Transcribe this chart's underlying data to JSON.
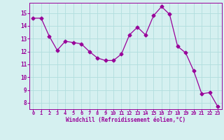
{
  "x": [
    0,
    1,
    2,
    3,
    4,
    5,
    6,
    7,
    8,
    9,
    10,
    11,
    12,
    13,
    14,
    15,
    16,
    17,
    18,
    19,
    20,
    21,
    22,
    23
  ],
  "y": [
    14.6,
    14.6,
    13.2,
    12.1,
    12.8,
    12.7,
    12.6,
    12.0,
    11.5,
    11.3,
    11.3,
    11.8,
    13.3,
    13.9,
    13.3,
    14.8,
    15.5,
    14.9,
    12.4,
    11.9,
    10.5,
    8.7,
    8.8,
    7.7
  ],
  "line_color": "#990099",
  "marker": "D",
  "marker_size": 2.5,
  "bg_color": "#d5f0f0",
  "grid_color": "#b0dede",
  "xlabel": "Windchill (Refroidissement éolien,°C)",
  "xlabel_color": "#990099",
  "tick_color": "#990099",
  "ylim": [
    7.5,
    15.8
  ],
  "xlim": [
    -0.5,
    23.5
  ],
  "yticks": [
    8,
    9,
    10,
    11,
    12,
    13,
    14,
    15
  ],
  "xticks": [
    0,
    1,
    2,
    3,
    4,
    5,
    6,
    7,
    8,
    9,
    10,
    11,
    12,
    13,
    14,
    15,
    16,
    17,
    18,
    19,
    20,
    21,
    22,
    23
  ]
}
